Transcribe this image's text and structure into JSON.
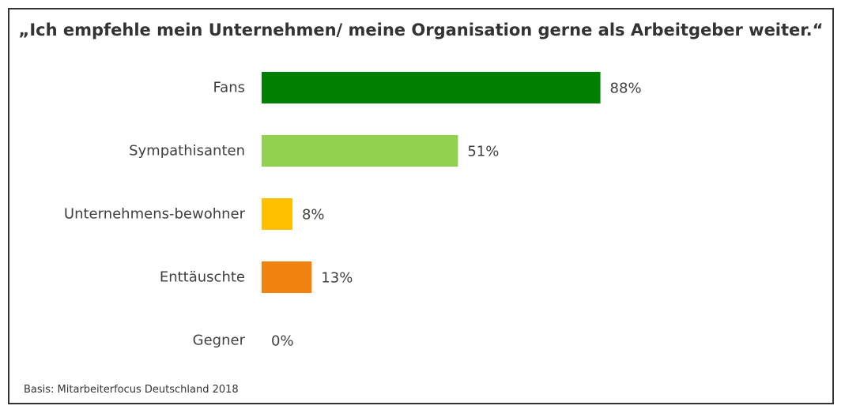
{
  "chart_data": {
    "type": "bar",
    "orientation": "horizontal",
    "title": "„Ich empfehle mein Unternehmen/ meine Organisation gerne als Arbeitgeber weiter.“",
    "categories": [
      "Fans",
      "Sympathisanten",
      "Unternehmens-bewohner",
      "Enttäuschte",
      "Gegner"
    ],
    "values": [
      88,
      51,
      8,
      13,
      0
    ],
    "value_labels": [
      "88%",
      "51%",
      "8%",
      "13%",
      "0%"
    ],
    "colors": [
      "#008000",
      "#92d050",
      "#ffc000",
      "#f0820f",
      "#c00000"
    ],
    "xlim": [
      0,
      100
    ],
    "xlabel": "",
    "ylabel": "",
    "grid": false
  },
  "source": "Basis: Mitarbeiterfocus Deutschland 2018"
}
